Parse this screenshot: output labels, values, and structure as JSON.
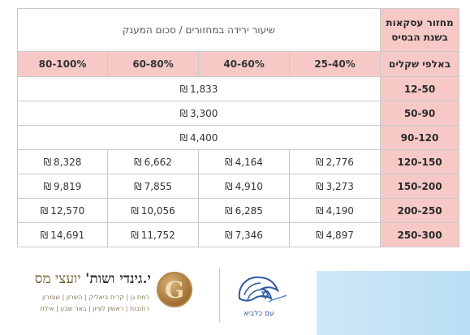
{
  "table": {
    "corner_line1": "מחזור עסקאות",
    "corner_line2": "בשנת הבסיס",
    "main_header": "שיעור ירידה במחזורים / סכום המענק",
    "subheader_label": "באלפי שקלים",
    "currency_symbol": "₪",
    "ranges": [
      "25-40%",
      "40-60%",
      "60-80%",
      "80-100%"
    ],
    "rows": [
      {
        "label": "12-50",
        "merged": "1,833"
      },
      {
        "label": "50-90",
        "merged": "3,300"
      },
      {
        "label": "90-120",
        "merged": "4,400"
      },
      {
        "label": "120-150",
        "values": [
          "2,776",
          "4,164",
          "6,662",
          "8,328"
        ]
      },
      {
        "label": "150-200",
        "values": [
          "3,273",
          "4,910",
          "7,855",
          "9,819"
        ]
      },
      {
        "label": "200-250",
        "values": [
          "4,190",
          "6,285",
          "10,056",
          "12,570"
        ]
      },
      {
        "label": "250-300",
        "values": [
          "4,897",
          "7,346",
          "11,752",
          "14,691"
        ]
      }
    ]
  },
  "footer": {
    "firm_name_a": "י.גינדי ושות'",
    "firm_name_b": " יועצי מס",
    "firm_line1": "רמת גן | קרית ביאליק | השרון | שומרון",
    "firm_line2": "רחובות | ראשון לציון | באר שבע | אילת",
    "coin_letter": "G",
    "lion_caption": "עם כלביא"
  }
}
